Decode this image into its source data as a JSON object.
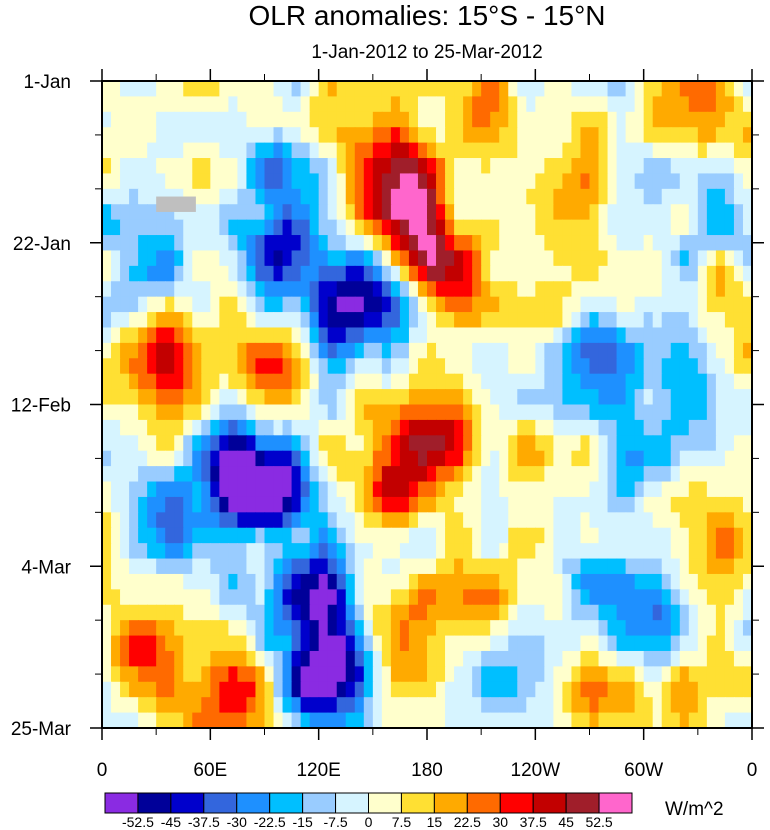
{
  "chart_data": {
    "type": "heatmap",
    "title": "OLR anomalies: 15°S - 15°N",
    "subtitle": "1-Jan-2012 to 25-Mar-2012",
    "x_ticks": [
      "0",
      "60E",
      "120E",
      "180",
      "120W",
      "60W",
      "0"
    ],
    "x_tick_values": [
      0,
      60,
      120,
      180,
      240,
      300,
      360
    ],
    "xlim": [
      0,
      360
    ],
    "y_ticks": [
      "1-Jan",
      "22-Jan",
      "12-Feb",
      "4-Mar",
      "25-Mar"
    ],
    "y_tick_values": [
      0,
      21,
      42,
      63,
      84
    ],
    "ylim": [
      0,
      84
    ],
    "units": "W/m^2",
    "levels": [
      "-52.5",
      "-45",
      "-37.5",
      "-30",
      "-22.5",
      "-15",
      "-7.5",
      "0",
      "7.5",
      "15",
      "22.5",
      "30",
      "37.5",
      "45",
      "52.5"
    ],
    "level_values": [
      -52.5,
      -45,
      -37.5,
      -30,
      -22.5,
      -15,
      -7.5,
      0,
      7.5,
      15,
      22.5,
      30,
      37.5,
      45,
      52.5
    ],
    "colors": [
      "#8a2be2",
      "#000099",
      "#0000cc",
      "#3366dd",
      "#1e90ff",
      "#00bfff",
      "#99ccff",
      "#d6f4ff",
      "#ffffcc",
      "#ffe033",
      "#ffaa00",
      "#ff6a00",
      "#ff0000",
      "#c20000",
      "#a01e2a",
      "#ff66cc"
    ],
    "features": [
      {
        "lon": 105,
        "day": 10,
        "value": -35
      },
      {
        "lon": 100,
        "day": 22,
        "value": -48
      },
      {
        "lon": 130,
        "day": 30,
        "value": -40
      },
      {
        "lon": 150,
        "day": 27,
        "value": -28
      },
      {
        "lon": 95,
        "day": 53,
        "value": -55
      },
      {
        "lon": 75,
        "day": 50,
        "value": -40
      },
      {
        "lon": 110,
        "day": 66,
        "value": -50
      },
      {
        "lon": 130,
        "day": 74,
        "value": -58
      },
      {
        "lon": 120,
        "day": 80,
        "value": -40
      },
      {
        "lon": 45,
        "day": 56,
        "value": -25
      },
      {
        "lon": 20,
        "day": 25,
        "value": -20
      },
      {
        "lon": 275,
        "day": 35,
        "value": -30
      },
      {
        "lon": 325,
        "day": 42,
        "value": -25
      },
      {
        "lon": 300,
        "day": 50,
        "value": -20
      },
      {
        "lon": 270,
        "day": 63,
        "value": -22
      },
      {
        "lon": 310,
        "day": 70,
        "value": -25
      },
      {
        "lon": 230,
        "day": 78,
        "value": -18
      },
      {
        "lon": 335,
        "day": 20,
        "value": -18
      },
      {
        "lon": 165,
        "day": 12,
        "value": 40
      },
      {
        "lon": 170,
        "day": 18,
        "value": 35
      },
      {
        "lon": 195,
        "day": 24,
        "value": 40
      },
      {
        "lon": 180,
        "day": 45,
        "value": 45
      },
      {
        "lon": 160,
        "day": 52,
        "value": 35
      },
      {
        "lon": 165,
        "day": 72,
        "value": 35
      },
      {
        "lon": 125,
        "day": 8,
        "value": 25
      },
      {
        "lon": 35,
        "day": 36,
        "value": 35
      },
      {
        "lon": 20,
        "day": 76,
        "value": 30
      },
      {
        "lon": 75,
        "day": 80,
        "value": 35
      },
      {
        "lon": 95,
        "day": 38,
        "value": 25
      },
      {
        "lon": 210,
        "day": 5,
        "value": 30
      },
      {
        "lon": 330,
        "day": 5,
        "value": 25
      },
      {
        "lon": 340,
        "day": 28,
        "value": 20
      },
      {
        "lon": 255,
        "day": 15,
        "value": 18
      },
      {
        "lon": 270,
        "day": 82,
        "value": 20
      },
      {
        "lon": 240,
        "day": 48,
        "value": 15
      },
      {
        "lon": 205,
        "day": 70,
        "value": 20
      },
      {
        "lon": 300,
        "day": 80,
        "value": 22
      },
      {
        "lon": 355,
        "day": 60,
        "value": 18
      }
    ],
    "missing_region": {
      "lon": [
        30,
        52
      ],
      "day": [
        15,
        17
      ]
    },
    "missing_color": "#bfbfbf"
  }
}
